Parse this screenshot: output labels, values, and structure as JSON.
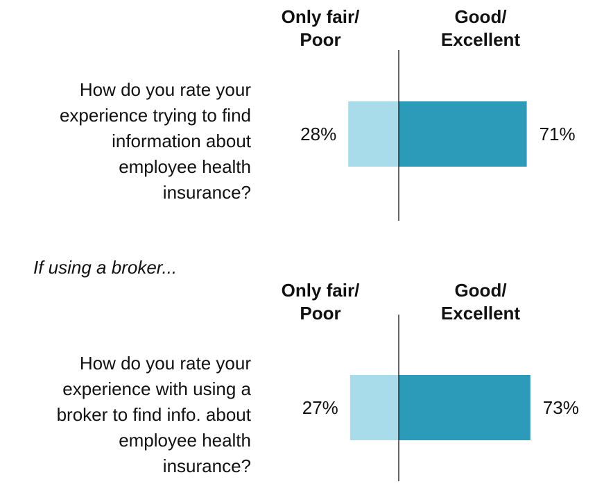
{
  "chart_data": [
    {
      "type": "bar",
      "categories": [
        "How do you rate your\nexperience trying to find\ninformation about\nemployee health\ninsurance?"
      ],
      "series": [
        {
          "name": "Only fair/\nPoor",
          "color": "#a8dcea",
          "values": [
            28
          ],
          "value_labels": [
            "28%"
          ]
        },
        {
          "name": "Good/\nExcellent",
          "color": "#2b9bb9",
          "values": [
            71
          ],
          "value_labels": [
            "71%"
          ]
        }
      ]
    },
    {
      "type": "bar",
      "note": "If using a broker...",
      "categories": [
        "How do you rate your\nexperience with using a\nbroker to find info. about\nemployee health\ninsurance?"
      ],
      "series": [
        {
          "name": "Only fair/\nPoor",
          "color": "#a8dcea",
          "values": [
            27
          ],
          "value_labels": [
            "27%"
          ]
        },
        {
          "name": "Good/\nExcellent",
          "color": "#2b9bb9",
          "values": [
            73
          ],
          "value_labels": [
            "73%"
          ]
        }
      ]
    }
  ]
}
